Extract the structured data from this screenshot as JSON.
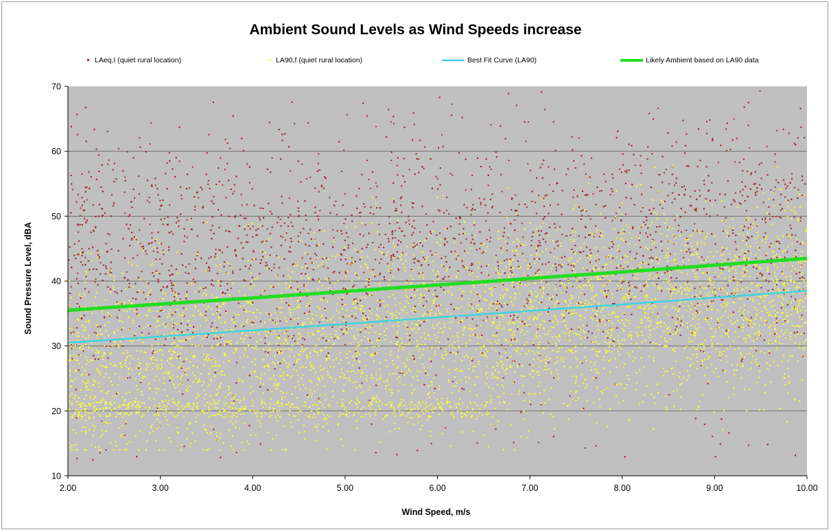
{
  "chart_data": {
    "type": "scatter",
    "title": "Ambient Sound Levels as Wind Speeds increase",
    "xlabel": "Wind Speed, m/s",
    "ylabel": "Sound Pressure Level, dBA",
    "xlim": [
      2.0,
      10.0
    ],
    "ylim": [
      10,
      70
    ],
    "x_ticks": [
      "2.00",
      "3.00",
      "4.00",
      "5.00",
      "6.00",
      "7.00",
      "8.00",
      "9.00",
      "10.00"
    ],
    "y_ticks": [
      "10",
      "20",
      "30",
      "40",
      "50",
      "60",
      "70"
    ],
    "grid": "horizontal",
    "legend_position": "top",
    "plot_background": "#c0c0c0",
    "series": [
      {
        "name": "LAeq,I (quiet rural location)",
        "kind": "scatter",
        "color": "#a52a2a",
        "approx_points": 4500,
        "points": [
          [
            2.05,
            54.1
          ],
          [
            2.3,
            48.2
          ],
          [
            2.55,
            60.4
          ],
          [
            2.8,
            45.3
          ],
          [
            3.1,
            51.7
          ],
          [
            3.4,
            43.9
          ],
          [
            3.7,
            57.2
          ],
          [
            4.0,
            46.8
          ],
          [
            4.3,
            49.5
          ],
          [
            4.6,
            44.1
          ],
          [
            4.9,
            52.3
          ],
          [
            5.2,
            47.0
          ],
          [
            5.5,
            58.6
          ],
          [
            5.8,
            41.2
          ],
          [
            6.1,
            50.9
          ],
          [
            6.4,
            45.7
          ],
          [
            6.7,
            53.8
          ],
          [
            7.0,
            42.6
          ],
          [
            7.3,
            55.1
          ],
          [
            7.6,
            48.4
          ],
          [
            7.9,
            43.5
          ],
          [
            8.2,
            59.3
          ],
          [
            8.5,
            46.1
          ],
          [
            8.8,
            51.2
          ],
          [
            9.1,
            44.8
          ],
          [
            9.4,
            56.7
          ],
          [
            9.7,
            49.9
          ],
          [
            9.95,
            53.2
          ],
          [
            3.0,
            35.4
          ],
          [
            5.0,
            30.2
          ],
          [
            7.0,
            33.1
          ],
          [
            9.0,
            38.7
          ]
        ]
      },
      {
        "name": "LA90,f (quiet rural location)",
        "kind": "scatter",
        "color": "#ffff33",
        "approx_points": 4500,
        "points": [
          [
            2.05,
            19.0
          ],
          [
            2.3,
            24.5
          ],
          [
            2.55,
            30.1
          ],
          [
            2.8,
            19.1
          ],
          [
            3.1,
            27.3
          ],
          [
            3.4,
            21.2
          ],
          [
            3.7,
            33.6
          ],
          [
            4.0,
            20.8
          ],
          [
            4.3,
            26.4
          ],
          [
            4.6,
            19.2
          ],
          [
            4.9,
            31.7
          ],
          [
            5.2,
            22.9
          ],
          [
            5.5,
            35.0
          ],
          [
            5.8,
            19.3
          ],
          [
            6.1,
            28.8
          ],
          [
            6.4,
            37.1
          ],
          [
            6.7,
            24.0
          ],
          [
            7.0,
            33.2
          ],
          [
            7.3,
            27.6
          ],
          [
            7.6,
            39.4
          ],
          [
            7.9,
            30.5
          ],
          [
            8.2,
            42.1
          ],
          [
            8.5,
            34.8
          ],
          [
            8.8,
            40.2
          ],
          [
            9.1,
            36.9
          ],
          [
            9.4,
            44.3
          ],
          [
            9.7,
            38.5
          ],
          [
            9.95,
            46.0
          ],
          [
            5.0,
            45.2
          ],
          [
            8.0,
            52.0
          ]
        ]
      },
      {
        "name": "Best Fit Curve (LA90)",
        "kind": "line",
        "color": "#3fd3e0",
        "points": [
          [
            2.0,
            30.5
          ],
          [
            4.0,
            32.4
          ],
          [
            6.0,
            34.4
          ],
          [
            8.0,
            36.4
          ],
          [
            10.0,
            38.5
          ]
        ]
      },
      {
        "name": "Likely Ambient based on LA90 data",
        "kind": "line",
        "color": "#22dd22",
        "points": [
          [
            2.0,
            35.5
          ],
          [
            4.0,
            37.4
          ],
          [
            6.0,
            39.4
          ],
          [
            8.0,
            41.4
          ],
          [
            10.0,
            43.5
          ]
        ]
      }
    ]
  }
}
